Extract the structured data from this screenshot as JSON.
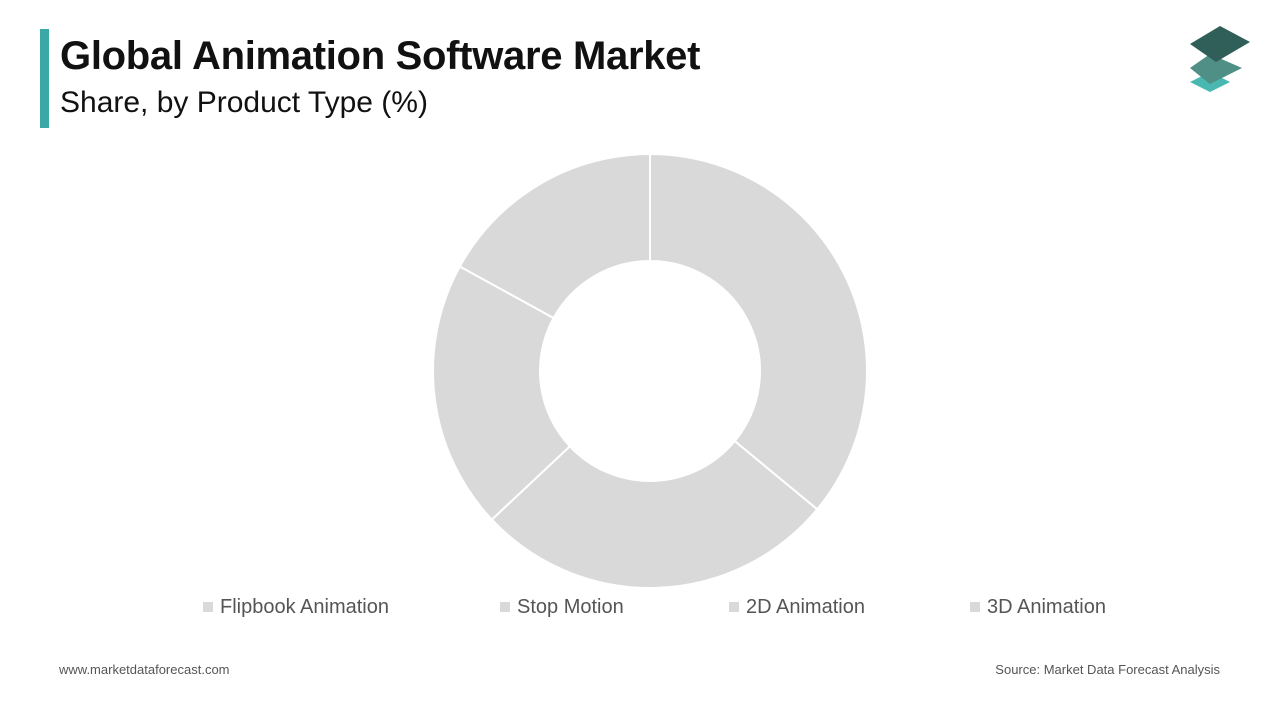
{
  "header": {
    "title": "Global Animation Software Market",
    "subtitle": "Share, by Product Type (%)",
    "accent_color": "#3aa8a4"
  },
  "logo": {
    "icon": "stacked-layers-icon",
    "colors": [
      "#2f5f58",
      "#4f8f86",
      "#49b8b0"
    ]
  },
  "chart_data": {
    "type": "pie",
    "donut": true,
    "slice_color": "#d9d9d9",
    "categories": [
      "Flipbook Animation",
      "Stop Motion",
      "2D Animation",
      "3D Animation"
    ],
    "values": [
      17,
      20,
      27,
      36
    ],
    "order_clockwise_from_top": [
      "3D Animation",
      "2D Animation",
      "Stop Motion",
      "Flipbook Animation"
    ],
    "legend_placement": "bottom"
  },
  "legend": {
    "items": [
      {
        "label": "Flipbook Animation",
        "color": "#d9d9d9"
      },
      {
        "label": "Stop Motion",
        "color": "#d9d9d9"
      },
      {
        "label": "2D Animation",
        "color": "#d9d9d9"
      },
      {
        "label": "3D Animation",
        "color": "#d9d9d9"
      }
    ]
  },
  "footer": {
    "website": "www.marketdataforecast.com",
    "source": "Source: Market Data Forecast Analysis"
  }
}
